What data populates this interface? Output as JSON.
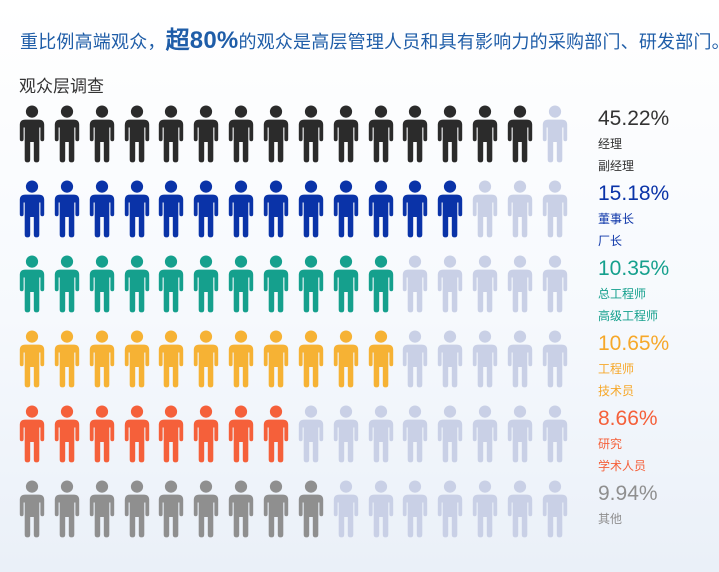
{
  "headline": {
    "prefix": "重比例高端观众，",
    "highlight": "超80%",
    "suffix": "的观众是高层管理人员和具有影响力的采购部门、研发部门。"
  },
  "chart_title": "观众层调查",
  "colors": {
    "inactive_icon": "#c9d0e6"
  },
  "chart_data": {
    "type": "pictogram",
    "icons_per_row": 16,
    "series": [
      {
        "value": 45.22,
        "value_label": "45.22%",
        "labels": [
          "经理",
          "副经理"
        ],
        "filled_icons": 15,
        "color": "#2b2b2b",
        "text_color": "#333333"
      },
      {
        "value": 15.18,
        "value_label": "15.18%",
        "labels": [
          "董事长",
          "厂长"
        ],
        "filled_icons": 13,
        "color": "#0a33a8",
        "text_color": "#0a33a8"
      },
      {
        "value": 10.35,
        "value_label": "10.35%",
        "labels": [
          "总工程师",
          "高级工程师"
        ],
        "filled_icons": 11,
        "color": "#15a08d",
        "text_color": "#15a08d"
      },
      {
        "value": 10.65,
        "value_label": "10.65%",
        "labels": [
          "工程师",
          "技术员"
        ],
        "filled_icons": 11,
        "color": "#f6b234",
        "text_color": "#f6a82a"
      },
      {
        "value": 8.66,
        "value_label": "8.66%",
        "labels": [
          "研究",
          "学术人员"
        ],
        "filled_icons": 8,
        "color": "#f5603a",
        "text_color": "#f5603a"
      },
      {
        "value": 9.94,
        "value_label": "9.94%",
        "labels": [
          "其他"
        ],
        "filled_icons": 9,
        "color": "#8f8f8f",
        "text_color": "#8f8f8f"
      }
    ]
  }
}
